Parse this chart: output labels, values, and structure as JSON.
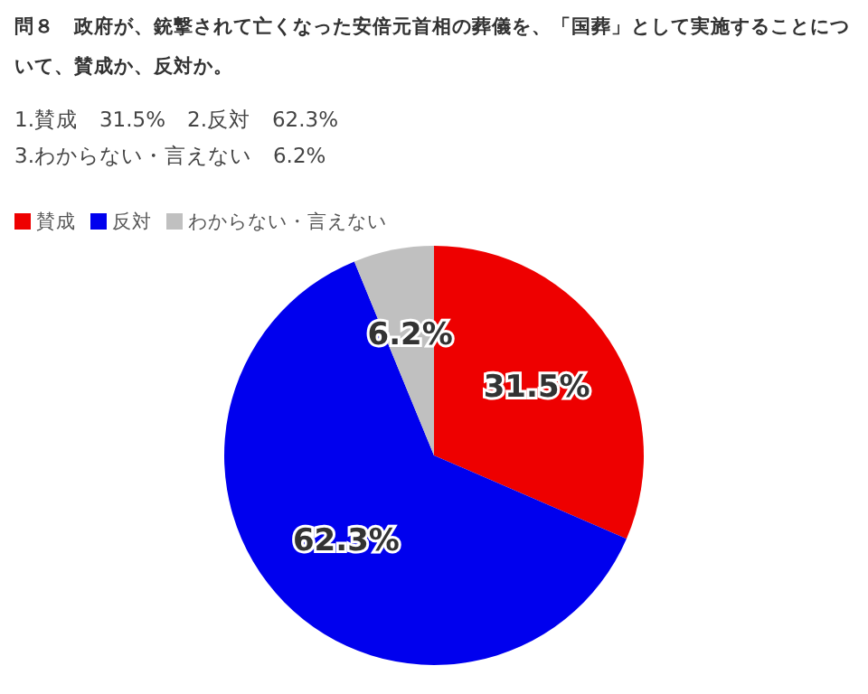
{
  "chart_data": {
    "type": "pie",
    "title": "問８　政府が、銃撃されて亡くなった安倍元首相の葬儀を、「国葬」として実施することについて、賛成か、反対か。",
    "subtitle": "1.賛成　31.5%　2.反対　62.3%\n3.わからない・言えない　6.2%",
    "categories": [
      "賛成",
      "反対",
      "わからない・言えない"
    ],
    "values": [
      31.5,
      62.3,
      6.2
    ],
    "colors": [
      "#ee0000",
      "#0000ee",
      "#c0c0c0"
    ],
    "value_labels": [
      "31.5%",
      "62.3%",
      "6.2%"
    ],
    "legend": "top left"
  }
}
